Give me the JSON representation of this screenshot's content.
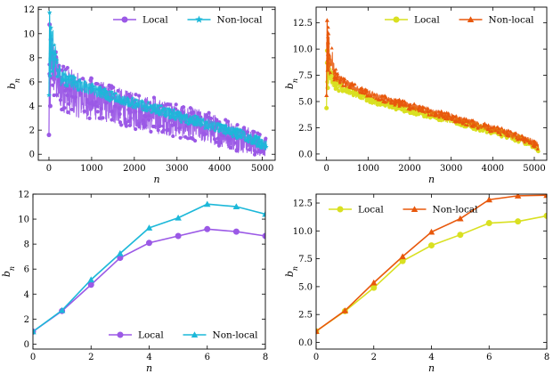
{
  "chart_data": [
    {
      "id": "top-left",
      "type": "line",
      "xlabel": "n",
      "ylabel": "b_n",
      "xlim": [
        -250,
        5300
      ],
      "ylim": [
        -0.5,
        12.2
      ],
      "xticks": [
        0,
        1000,
        2000,
        3000,
        4000,
        5000
      ],
      "yticks": [
        0,
        2,
        4,
        6,
        8,
        10,
        12
      ],
      "xtick_labels": [
        "0",
        "1000",
        "2000",
        "3000",
        "4000",
        "5000"
      ],
      "ytick_labels": [
        "0",
        "2",
        "4",
        "6",
        "8",
        "10",
        "12"
      ],
      "legend": "top-right",
      "band": true,
      "series": [
        {
          "name": "Local",
          "color": "#9b59e6",
          "marker": "circle",
          "x": [
            0,
            50,
            200,
            400,
            800,
            1200,
            1600,
            2000,
            2500,
            3000,
            3500,
            4000,
            4500,
            4800,
            5050,
            5100
          ],
          "center": [
            5.5,
            8.0,
            6.0,
            5.3,
            4.7,
            4.4,
            4.0,
            3.6,
            3.2,
            2.8,
            2.4,
            1.9,
            1.3,
            1.0,
            0.6,
            0.7
          ],
          "spread": [
            1.5,
            2.5,
            2.2,
            2.0,
            1.8,
            1.7,
            1.6,
            1.5,
            1.5,
            1.4,
            1.4,
            1.3,
            1.2,
            1.1,
            0.8,
            0.6
          ]
        },
        {
          "name": "Non-local",
          "color": "#1cb8d9",
          "marker": "star",
          "x": [
            0,
            50,
            200,
            400,
            800,
            1200,
            1600,
            2000,
            2500,
            3000,
            3500,
            4000,
            4500,
            4800,
            5050,
            5100
          ],
          "center": [
            7.5,
            9.0,
            6.8,
            6.2,
            5.6,
            5.1,
            4.6,
            4.2,
            3.7,
            3.2,
            2.7,
            2.2,
            1.6,
            1.2,
            0.8,
            0.9
          ],
          "spread": [
            1.0,
            2.5,
            1.0,
            0.7,
            0.5,
            0.5,
            0.45,
            0.45,
            0.45,
            0.45,
            0.45,
            0.45,
            0.45,
            0.45,
            0.4,
            0.4
          ]
        }
      ]
    },
    {
      "id": "top-right",
      "type": "line",
      "xlabel": "n",
      "ylabel": "b_n",
      "xlim": [
        -250,
        5300
      ],
      "ylim": [
        -0.6,
        14.0
      ],
      "xticks": [
        0,
        1000,
        2000,
        3000,
        4000,
        5000
      ],
      "yticks": [
        0.0,
        2.5,
        5.0,
        7.5,
        10.0,
        12.5
      ],
      "xtick_labels": [
        "0",
        "1000",
        "2000",
        "3000",
        "4000",
        "5000"
      ],
      "ytick_labels": [
        "0.0",
        "2.5",
        "5.0",
        "7.5",
        "10.0",
        "12.5"
      ],
      "legend": "top-right",
      "band": true,
      "series": [
        {
          "name": "Local",
          "color": "#d9e021",
          "marker": "circle",
          "x": [
            0,
            50,
            200,
            400,
            800,
            1200,
            1600,
            2000,
            2500,
            3000,
            3500,
            4000,
            4500,
            4800,
            5050,
            5100
          ],
          "center": [
            7.5,
            8.2,
            6.8,
            6.2,
            5.5,
            5.0,
            4.6,
            4.2,
            3.7,
            3.2,
            2.7,
            2.2,
            1.6,
            1.2,
            0.6,
            0.5
          ],
          "spread": [
            1.2,
            1.5,
            0.6,
            0.4,
            0.3,
            0.3,
            0.3,
            0.3,
            0.3,
            0.3,
            0.3,
            0.3,
            0.3,
            0.3,
            0.3,
            0.3
          ]
        },
        {
          "name": "Non-local",
          "color": "#e8580c",
          "marker": "triangle",
          "x": [
            0,
            50,
            200,
            400,
            800,
            1200,
            1600,
            2000,
            2500,
            3000,
            3500,
            4000,
            4500,
            4800,
            5050,
            5100
          ],
          "center": [
            9.5,
            10.0,
            7.6,
            6.9,
            6.1,
            5.5,
            5.0,
            4.6,
            4.0,
            3.5,
            2.9,
            2.4,
            1.8,
            1.4,
            0.9,
            0.7
          ],
          "spread": [
            1.5,
            2.5,
            0.6,
            0.4,
            0.35,
            0.35,
            0.35,
            0.35,
            0.35,
            0.35,
            0.35,
            0.35,
            0.35,
            0.35,
            0.35,
            0.35
          ]
        }
      ]
    },
    {
      "id": "bottom-left",
      "type": "line",
      "xlabel": "n",
      "ylabel": "b_n",
      "xlim": [
        0,
        8
      ],
      "ylim": [
        -0.4,
        12.0
      ],
      "xticks": [
        0,
        2,
        4,
        6,
        8
      ],
      "yticks": [
        0,
        2,
        4,
        6,
        8,
        10,
        12
      ],
      "xtick_labels": [
        "0",
        "2",
        "4",
        "6",
        "8"
      ],
      "ytick_labels": [
        "0",
        "2",
        "4",
        "6",
        "8",
        "10",
        "12"
      ],
      "legend": "bottom-right",
      "band": false,
      "series": [
        {
          "name": "Local",
          "color": "#9b59e6",
          "marker": "circle",
          "x": [
            0,
            1,
            2,
            3,
            4,
            5,
            6,
            7,
            8
          ],
          "y": [
            1.0,
            2.65,
            4.75,
            6.9,
            8.1,
            8.65,
            9.2,
            9.0,
            8.65
          ]
        },
        {
          "name": "Non-local",
          "color": "#1cb8d9",
          "marker": "triangle",
          "x": [
            0,
            1,
            2,
            3,
            4,
            5,
            6,
            7,
            8
          ],
          "y": [
            1.0,
            2.7,
            5.15,
            7.25,
            9.3,
            10.1,
            11.2,
            11.0,
            10.4
          ]
        }
      ]
    },
    {
      "id": "bottom-right",
      "type": "line",
      "xlabel": "n",
      "ylabel": "b_n",
      "xlim": [
        0,
        8
      ],
      "ylim": [
        -0.6,
        13.3
      ],
      "xticks": [
        0,
        2,
        4,
        6,
        8
      ],
      "yticks": [
        0.0,
        2.5,
        5.0,
        7.5,
        10.0,
        12.5
      ],
      "xtick_labels": [
        "0",
        "2",
        "4",
        "6",
        "8"
      ],
      "ytick_labels": [
        "0.0",
        "2.5",
        "5.0",
        "7.5",
        "10.0",
        "12.5"
      ],
      "legend": "top-left",
      "band": false,
      "series": [
        {
          "name": "Local",
          "color": "#d9e021",
          "marker": "circle",
          "x": [
            0,
            1,
            2,
            3,
            4,
            5,
            6,
            7,
            8
          ],
          "y": [
            1.0,
            2.8,
            4.9,
            7.3,
            8.7,
            9.65,
            10.7,
            10.85,
            11.35
          ]
        },
        {
          "name": "Non-local",
          "color": "#e8580c",
          "marker": "triangle",
          "x": [
            0,
            1,
            2,
            3,
            4,
            5,
            6,
            7,
            8
          ],
          "y": [
            1.0,
            2.85,
            5.35,
            7.7,
            9.9,
            11.1,
            12.8,
            13.15,
            13.2
          ]
        }
      ]
    }
  ]
}
